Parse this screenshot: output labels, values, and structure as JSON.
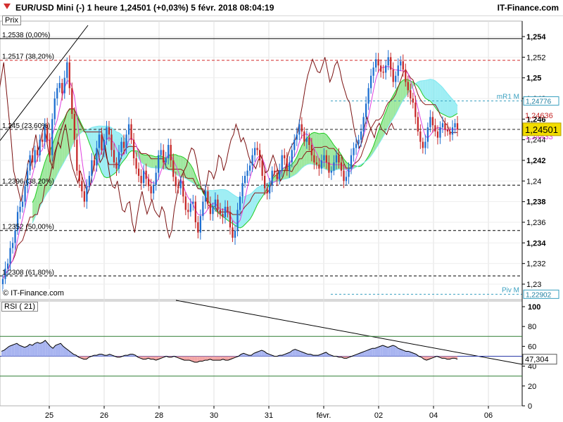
{
  "header": {
    "title": "EUR/USD Mini (-)   1 heure   1,24501 (+0,03%)   5 févr. 2018 08:04:19",
    "brand": "IT-Finance.com"
  },
  "price_panel": {
    "label": "Prix",
    "copyright": "© IT-Finance.com"
  },
  "rsi_panel": {
    "label": "RSI ( 21)"
  },
  "colors": {
    "up": "#1e6fd1",
    "down": "#c62828",
    "cloud_bull": "#7fe07f",
    "cloud_bear": "#7fe8f0",
    "kijun": "#8b1a1a",
    "tenkan": "#e040e0",
    "senkou": "#22cc22",
    "fib": "#000000",
    "res": "#d32f2f",
    "current": "#f2dc00",
    "rsi_fill_up": "#a8b4f0",
    "rsi_fill_down": "#f2a6a6"
  },
  "chart_data": {
    "type": "candlestick",
    "price_axis": {
      "min": 1.2285,
      "max": 1.2555,
      "ticks": [
        "1,254",
        "1,252",
        "1,25",
        "1,248",
        "1,246",
        "1,244",
        "1,242",
        "1,24",
        "1,238",
        "1,236",
        "1,234",
        "1,232",
        "1,23"
      ],
      "tick_values": [
        1.254,
        1.252,
        1.25,
        1.248,
        1.246,
        1.244,
        1.242,
        1.24,
        1.238,
        1.236,
        1.234,
        1.232,
        1.23
      ]
    },
    "x_labels": [
      {
        "label": "25",
        "day": 0
      },
      {
        "label": "26",
        "day": 1
      },
      {
        "label": "28",
        "day": 2
      },
      {
        "label": "30",
        "day": 3
      },
      {
        "label": "31",
        "day": 4
      },
      {
        "label": "févr.",
        "day": 5
      },
      {
        "label": "02",
        "day": 6
      },
      {
        "label": "04",
        "day": 7
      },
      {
        "label": "06",
        "day": 8
      }
    ],
    "fib_levels": [
      {
        "label": "1,2538 (0,00%)",
        "value": 1.2538
      },
      {
        "label": "1,245 (23,60%)",
        "value": 1.245
      },
      {
        "label": "1,2396 (38,20%)",
        "value": 1.2396
      },
      {
        "label": "1,2352 (50,00%)",
        "value": 1.2352
      },
      {
        "label": "1,2308 (61,80%)",
        "value": 1.2308
      }
    ],
    "resistance": {
      "label": "1,2517 (38,20%)",
      "value": 1.2517
    },
    "pivots": [
      {
        "label": "mR1 M",
        "value": 1.24776,
        "value_label": "1,24776"
      },
      {
        "label": "Piv M",
        "value": 1.22902,
        "value_label": "1,22902"
      }
    ],
    "right_labels": [
      {
        "value": 1.24636,
        "text": "1,24636",
        "color": "#c62828"
      },
      {
        "value": 1.24433,
        "text": "1,24433",
        "color": "#e040e0"
      }
    ],
    "current_price": {
      "value": 1.24501,
      "text": "1,24501"
    },
    "closes": [
      1.2305,
      1.2315,
      1.232,
      1.2335,
      1.234,
      1.2352,
      1.237,
      1.2375,
      1.238,
      1.2395,
      1.241,
      1.2425,
      1.2418,
      1.243,
      1.2425,
      1.244,
      1.2438,
      1.2455,
      1.244,
      1.2425,
      1.246,
      1.248,
      1.249,
      1.2495,
      1.2485,
      1.25,
      1.2515,
      1.249,
      1.2465,
      1.244,
      1.241,
      1.24,
      1.239,
      1.238,
      1.2395,
      1.2405,
      1.242,
      1.2415,
      1.2432,
      1.2445,
      1.243,
      1.244,
      1.2452,
      1.2445,
      1.243,
      1.2418,
      1.2412,
      1.2428,
      1.2438,
      1.2432,
      1.2445,
      1.2455,
      1.244,
      1.2422,
      1.2412,
      1.2405,
      1.2398,
      1.241,
      1.2402,
      1.2395,
      1.2388,
      1.2396,
      1.2408,
      1.2425,
      1.243,
      1.2418,
      1.2422,
      1.2435,
      1.242,
      1.2404,
      1.2395,
      1.2393,
      1.24,
      1.2385,
      1.2372,
      1.237,
      1.2378,
      1.238,
      1.236,
      1.235,
      1.2366,
      1.238,
      1.239,
      1.2378,
      1.2368,
      1.2375,
      1.2382,
      1.2372,
      1.2368,
      1.2365,
      1.2375,
      1.237,
      1.2355,
      1.2345,
      1.2352,
      1.2372,
      1.2385,
      1.2398,
      1.2405,
      1.241,
      1.2415,
      1.2425,
      1.2432,
      1.243,
      1.242,
      1.2405,
      1.2393,
      1.2388,
      1.2396,
      1.241,
      1.2408,
      1.2402,
      1.241,
      1.2425,
      1.2422,
      1.241,
      1.2418,
      1.243,
      1.244,
      1.2445,
      1.2455,
      1.2448,
      1.2438,
      1.2442,
      1.2435,
      1.2425,
      1.2418,
      1.2416,
      1.2412,
      1.242,
      1.2425,
      1.2418,
      1.2408,
      1.241,
      1.2418,
      1.2425,
      1.2418,
      1.241,
      1.24,
      1.2404,
      1.2412,
      1.2425,
      1.2432,
      1.2436,
      1.244,
      1.2448,
      1.2462,
      1.2475,
      1.249,
      1.2502,
      1.251,
      1.2518,
      1.2512,
      1.2506,
      1.2505,
      1.2512,
      1.252,
      1.2508,
      1.2496,
      1.2502,
      1.2512,
      1.2516,
      1.2508,
      1.2496,
      1.2488,
      1.248,
      1.2476,
      1.2462,
      1.2448,
      1.2438,
      1.2432,
      1.2438,
      1.2452,
      1.2462,
      1.2454,
      1.2448,
      1.2442,
      1.2452,
      1.2456,
      1.245,
      1.2448,
      1.2445,
      1.2452,
      1.2456,
      1.245
    ],
    "rsi": {
      "ticks": [
        "100",
        "80",
        "60",
        "40",
        "20",
        "0"
      ],
      "tick_values": [
        100,
        80,
        60,
        40,
        20,
        0
      ],
      "levels": [
        70,
        30
      ],
      "mid": 50,
      "current_text": "47,304",
      "values": [
        55,
        56,
        58,
        60,
        61,
        62,
        63,
        61,
        60,
        59,
        60,
        62,
        61,
        63,
        64,
        63,
        64,
        66,
        63,
        60,
        58,
        61,
        62,
        63,
        60,
        58,
        56,
        54,
        52,
        51,
        49,
        48,
        47,
        47,
        49,
        50,
        51,
        51,
        52,
        52,
        51,
        51,
        52,
        51,
        50,
        49,
        49,
        50,
        51,
        51,
        52,
        52,
        51,
        49,
        48,
        47,
        47,
        48,
        47,
        47,
        46,
        47,
        48,
        49,
        50,
        49,
        49,
        50,
        49,
        48,
        47,
        46,
        46,
        46,
        45,
        44,
        44,
        45,
        45,
        46,
        46,
        47,
        46,
        46,
        46,
        46,
        47,
        46,
        46,
        47,
        48,
        49,
        50,
        52,
        53,
        52,
        51,
        51,
        53,
        54,
        55,
        56,
        55,
        53,
        52,
        51,
        50,
        50,
        51,
        51,
        52,
        53,
        54,
        56,
        57,
        56,
        55,
        54,
        53,
        52,
        52,
        51,
        51,
        51,
        52,
        53,
        54,
        52,
        51,
        50,
        50,
        49,
        49,
        48,
        48,
        49,
        50,
        51,
        52,
        53,
        54,
        55,
        56,
        57,
        58,
        58,
        59,
        60,
        61,
        60,
        59,
        60,
        61,
        60,
        58,
        57,
        56,
        55,
        55,
        54,
        53,
        52,
        50,
        49,
        47,
        46,
        47,
        48,
        49,
        50,
        49,
        48,
        48,
        47,
        47,
        48,
        48,
        47
      ]
    }
  }
}
